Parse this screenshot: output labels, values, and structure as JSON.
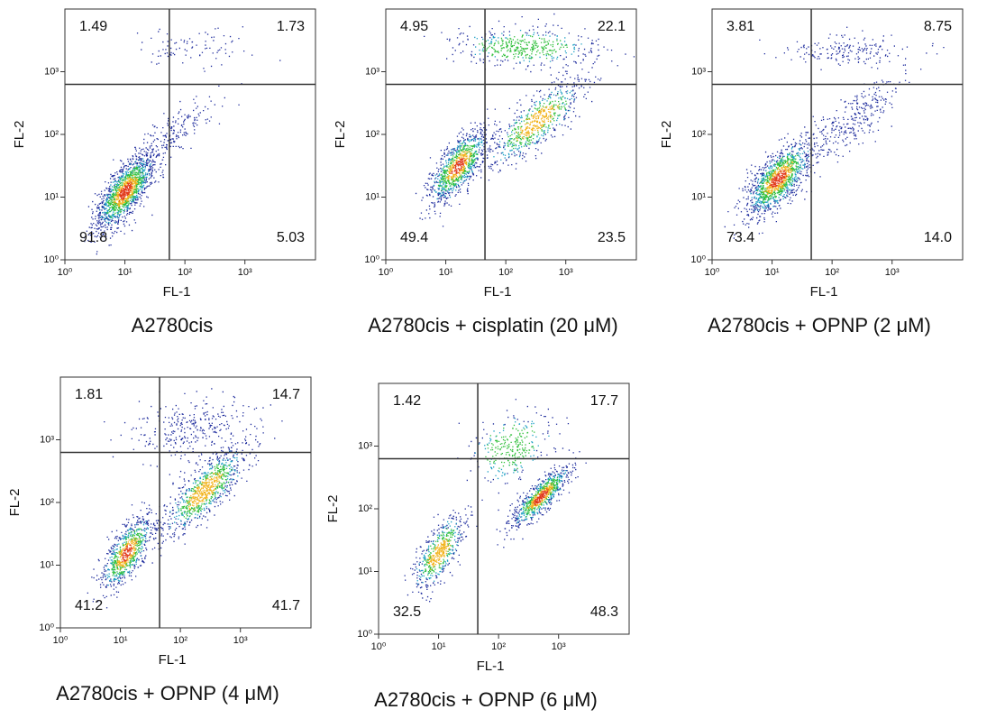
{
  "chart_data": [
    {
      "type": "quadrant",
      "title": "A2780cis",
      "xlabel": "FL-1",
      "ylabel": "FL-2",
      "xscale": "log",
      "yscale": "log",
      "xlim": [
        1,
        15000
      ],
      "ylim": [
        1,
        10000
      ],
      "xticks": [
        {
          "value": 1,
          "label": "10⁰"
        },
        {
          "value": 10,
          "label": "10¹"
        },
        {
          "value": 100,
          "label": "10²"
        },
        {
          "value": 1000,
          "label": "10³"
        }
      ],
      "yticks": [
        {
          "value": 1,
          "label": "10⁰"
        },
        {
          "value": 10,
          "label": "10¹"
        },
        {
          "value": 100,
          "label": "10²"
        },
        {
          "value": 1000,
          "label": "10³"
        }
      ],
      "x_gate": 55,
      "y_gate": 630,
      "values": [
        1.49,
        1.73,
        91.8,
        5.03
      ]
    },
    {
      "type": "quadrant",
      "title": "A2780cis + cisplatin (20 μM)",
      "xlabel": "FL-1",
      "ylabel": "FL-2",
      "xscale": "log",
      "yscale": "log",
      "xlim": [
        1,
        15000
      ],
      "ylim": [
        1,
        10000
      ],
      "xticks": [
        {
          "value": 1,
          "label": "10⁰"
        },
        {
          "value": 10,
          "label": "10¹"
        },
        {
          "value": 100,
          "label": "10²"
        },
        {
          "value": 1000,
          "label": "10³"
        }
      ],
      "yticks": [
        {
          "value": 1,
          "label": "10⁰"
        },
        {
          "value": 10,
          "label": "10¹"
        },
        {
          "value": 100,
          "label": "10²"
        },
        {
          "value": 1000,
          "label": "10³"
        }
      ],
      "x_gate": 45,
      "y_gate": 630,
      "values": [
        4.95,
        22.1,
        49.4,
        23.5
      ]
    },
    {
      "type": "quadrant",
      "title": "A2780cis + OPNP (2 μM)",
      "xlabel": "FL-1",
      "ylabel": "FL-2",
      "xscale": "log",
      "yscale": "log",
      "xlim": [
        1,
        15000
      ],
      "ylim": [
        1,
        10000
      ],
      "xticks": [
        {
          "value": 1,
          "label": "10⁰"
        },
        {
          "value": 10,
          "label": "10¹"
        },
        {
          "value": 100,
          "label": "10²"
        },
        {
          "value": 1000,
          "label": "10³"
        }
      ],
      "yticks": [
        {
          "value": 1,
          "label": "10⁰"
        },
        {
          "value": 10,
          "label": "10¹"
        },
        {
          "value": 100,
          "label": "10²"
        },
        {
          "value": 1000,
          "label": "10³"
        }
      ],
      "x_gate": 45,
      "y_gate": 630,
      "values": [
        3.81,
        8.75,
        73.4,
        14
      ],
      "value_labels": [
        "3.81",
        "8.75",
        "73.4",
        "14.0"
      ]
    },
    {
      "type": "quadrant",
      "title": "A2780cis + OPNP (4 μM)",
      "xlabel": "FL-1",
      "ylabel": "FL-2",
      "xscale": "log",
      "yscale": "log",
      "xlim": [
        1,
        15000
      ],
      "ylim": [
        1,
        10000
      ],
      "xticks": [
        {
          "value": 1,
          "label": "10⁰"
        },
        {
          "value": 10,
          "label": "10¹"
        },
        {
          "value": 100,
          "label": "10²"
        },
        {
          "value": 1000,
          "label": "10³"
        }
      ],
      "yticks": [
        {
          "value": 1,
          "label": "10⁰"
        },
        {
          "value": 10,
          "label": "10¹"
        },
        {
          "value": 100,
          "label": "10²"
        },
        {
          "value": 1000,
          "label": "10³"
        }
      ],
      "x_gate": 45,
      "y_gate": 630,
      "values": [
        1.81,
        14.7,
        41.2,
        41.7
      ]
    },
    {
      "type": "quadrant",
      "title": "A2780cis + OPNP (6 μM)",
      "xlabel": "FL-1",
      "ylabel": "FL-2",
      "xscale": "log",
      "yscale": "log",
      "xlim": [
        1,
        15000
      ],
      "ylim": [
        1,
        10000
      ],
      "xticks": [
        {
          "value": 1,
          "label": "10⁰"
        },
        {
          "value": 10,
          "label": "10¹"
        },
        {
          "value": 100,
          "label": "10²"
        },
        {
          "value": 1000,
          "label": "10³"
        }
      ],
      "yticks": [
        {
          "value": 1,
          "label": "10⁰"
        },
        {
          "value": 10,
          "label": "10¹"
        },
        {
          "value": 100,
          "label": "10²"
        },
        {
          "value": 1000,
          "label": "10³"
        }
      ],
      "x_gate": 45,
      "y_gate": 630,
      "values": [
        1.42,
        17.7,
        32.5,
        48.3
      ]
    }
  ]
}
